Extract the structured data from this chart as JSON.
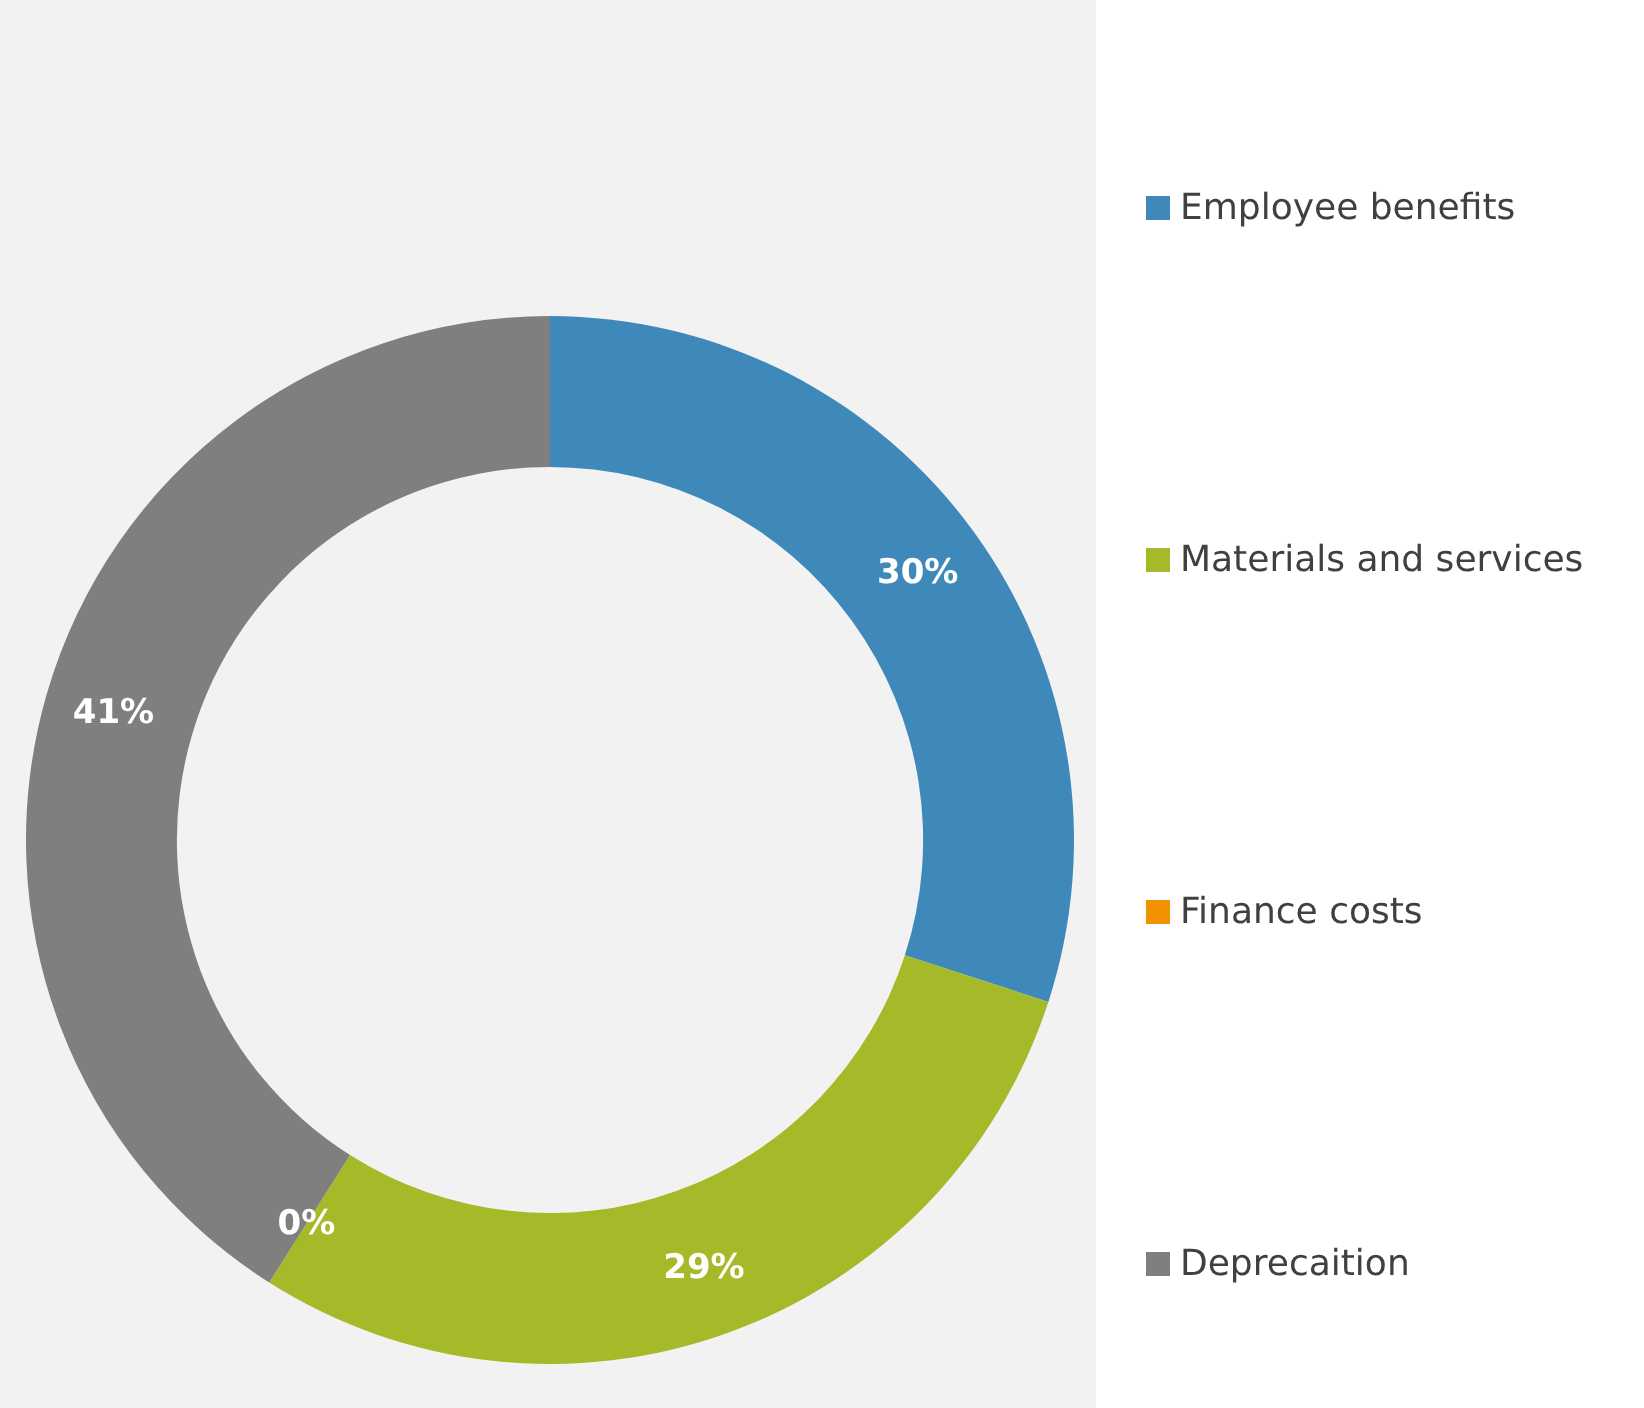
{
  "chart_data": {
    "type": "donut",
    "categories": [
      "Employee benefits",
      "Materials and services",
      "Finance costs",
      "Deprecaition"
    ],
    "values": [
      30,
      29,
      0,
      41
    ],
    "colors": [
      "#3e89b9",
      "#a6b928",
      "#f39200",
      "#7f7f7f"
    ],
    "value_labels": [
      "30%",
      "29%",
      "0%",
      "41%"
    ],
    "legend": "right"
  }
}
